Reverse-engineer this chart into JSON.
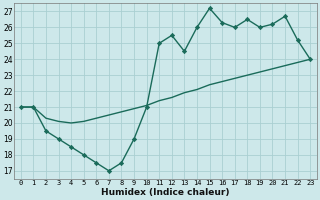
{
  "x": [
    0,
    1,
    2,
    3,
    4,
    5,
    6,
    7,
    8,
    9,
    10,
    11,
    12,
    13,
    14,
    15,
    16,
    17,
    18,
    19,
    20,
    21,
    22,
    23
  ],
  "y_main": [
    21,
    21,
    19.5,
    19,
    18.5,
    18,
    17.5,
    17,
    17.5,
    19,
    21,
    25,
    25.5,
    24.5,
    26,
    27.2,
    26.3,
    26,
    26.5,
    26,
    26.2,
    26.7,
    25.2,
    24
  ],
  "y_trend": [
    21,
    21.0,
    20.3,
    20.1,
    20.0,
    20.1,
    20.3,
    20.5,
    20.7,
    20.9,
    21.1,
    21.4,
    21.6,
    21.9,
    22.1,
    22.4,
    22.6,
    22.8,
    23.0,
    23.2,
    23.4,
    23.6,
    23.8,
    24.0
  ],
  "line_color": "#1a6b5a",
  "bg_color": "#cde8ea",
  "grid_color": "#aacfd2",
  "xlabel": "Humidex (Indice chaleur)",
  "ylabel_ticks": [
    17,
    18,
    19,
    20,
    21,
    22,
    23,
    24,
    25,
    26,
    27
  ],
  "xlim": [
    -0.5,
    23.5
  ],
  "ylim": [
    16.5,
    27.5
  ],
  "xticks": [
    0,
    1,
    2,
    3,
    4,
    5,
    6,
    7,
    8,
    9,
    10,
    11,
    12,
    13,
    14,
    15,
    16,
    17,
    18,
    19,
    20,
    21,
    22,
    23
  ],
  "marker": "D",
  "markersize": 2.2,
  "linewidth": 1.0,
  "trend_linewidth": 1.0
}
